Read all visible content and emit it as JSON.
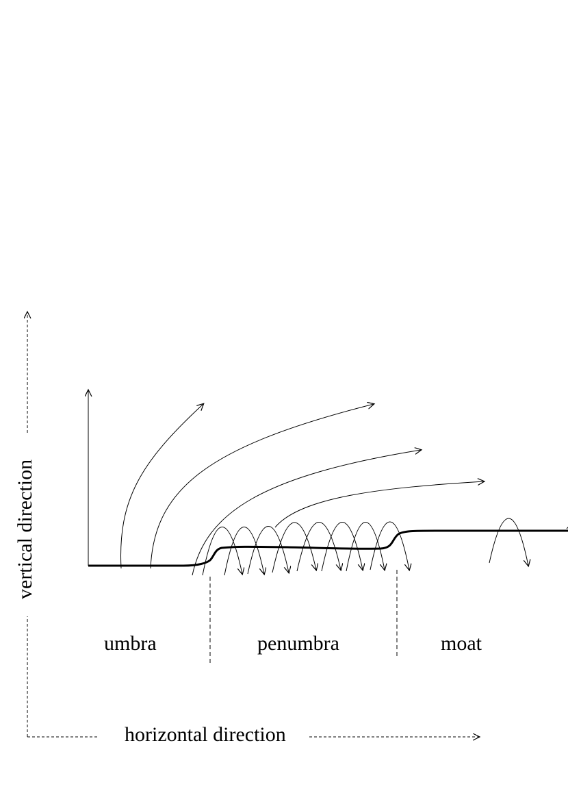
{
  "labels": {
    "umbra": "umbra",
    "penumbra": "penumbra",
    "moat": "moat",
    "horizontal_axis": "horizontal direction",
    "vertical_axis": "vertical direction"
  },
  "colors": {
    "ink": "#000000",
    "background": "#ffffff"
  }
}
